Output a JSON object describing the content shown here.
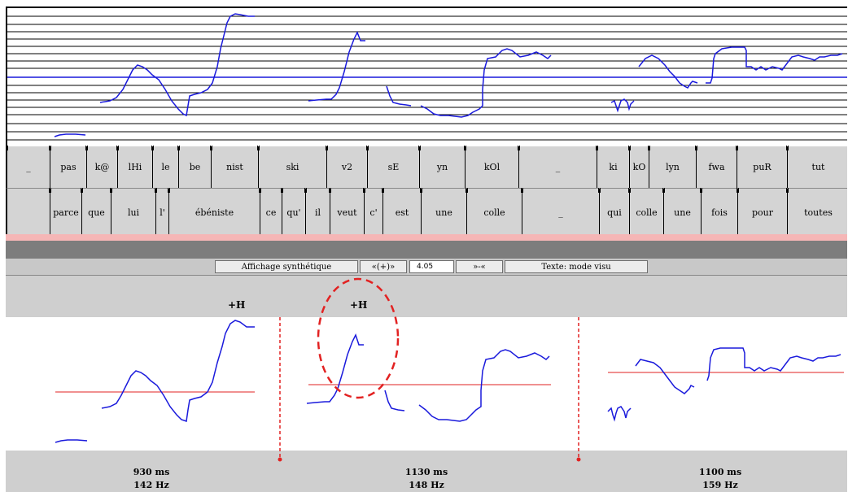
{
  "phoneme_tier": [
    "_",
    "pas",
    "k@",
    "lHi",
    "le",
    "be",
    "nist",
    "ski",
    "v2",
    "sE",
    "yn",
    "kOl",
    "_",
    "ki",
    "kO",
    "lyn",
    "fwa",
    "puR",
    "tut"
  ],
  "word_tier": [
    "parce",
    "que",
    "lui",
    "l'",
    "ébéniste",
    "ce",
    "qu'",
    "il",
    "veut",
    "c'",
    "est",
    "une",
    "colle",
    "_",
    "qui",
    "colle",
    "une",
    "fois",
    "pour",
    "toutes"
  ],
  "toolbar": {
    "display_button": "Affichage synthétique",
    "widen_button": "«(+)»",
    "zoom_value": "4.05",
    "narrow_button": "»-«",
    "text_mode_button": "Texte: mode visu"
  },
  "tones": [
    "+H",
    "+H"
  ],
  "segments": [
    {
      "duration": "930 ms",
      "pitch": "142 Hz"
    },
    {
      "duration": "1130 ms",
      "pitch": "148 Hz"
    },
    {
      "duration": "1100 ms",
      "pitch": "159 Hz"
    }
  ],
  "colors": {
    "contour": "#1a1adc",
    "reference_line": "#e22222",
    "divider": "#e22222"
  }
}
